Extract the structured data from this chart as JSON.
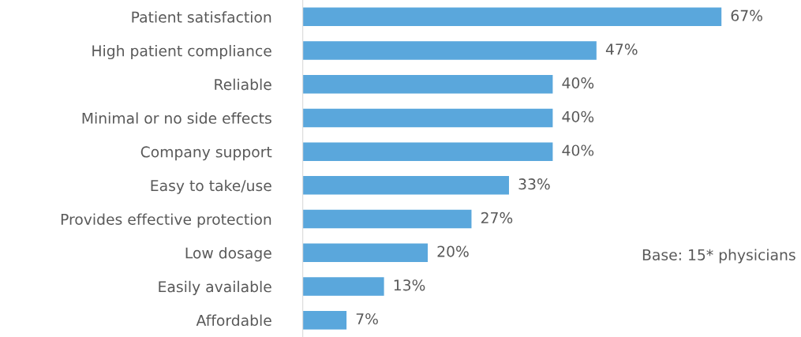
{
  "chart_data": {
    "type": "bar",
    "orientation": "horizontal",
    "categories": [
      "Patient satisfaction",
      "High patient compliance",
      "Reliable",
      "Minimal or no side effects",
      "Company support",
      "Easy to take/use",
      "Provides effective protection",
      "Low dosage",
      "Easily available",
      "Affordable"
    ],
    "values": [
      67,
      47,
      40,
      40,
      40,
      33,
      27,
      20,
      13,
      7
    ],
    "value_labels": [
      "67%",
      "47%",
      "40%",
      "40%",
      "40%",
      "33%",
      "27%",
      "20%",
      "13%",
      "7%"
    ],
    "color": "#5aa7dc",
    "grid": false,
    "legend": false,
    "annotations": [
      "Base: 15* physicians"
    ]
  }
}
